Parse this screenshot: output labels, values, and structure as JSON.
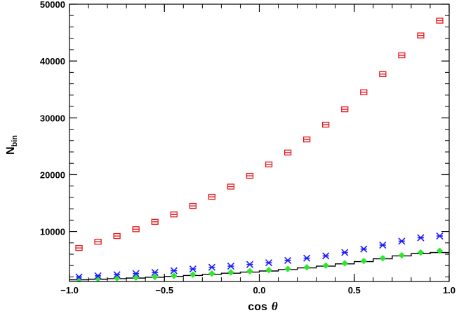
{
  "chart_data": {
    "type": "scatter",
    "xlabel_prefix": "cos",
    "xlabel_symbol": "θ",
    "ylabel_main": "N",
    "ylabel_sub": "bin",
    "xlim": [
      -1.0,
      1.0
    ],
    "ylim": [
      1200,
      50000
    ],
    "x_ticks": [
      -1.0,
      -0.5,
      0.0,
      0.5,
      1.0
    ],
    "x_tick_labels": [
      "−1.0",
      "−0.5",
      "0.0",
      "0.5",
      "1.0"
    ],
    "y_ticks": [
      10000,
      20000,
      30000,
      40000,
      50000
    ],
    "y_tick_labels": [
      "10000",
      "20000",
      "30000",
      "40000",
      "50000"
    ],
    "x": [
      -0.95,
      -0.85,
      -0.75,
      -0.65,
      -0.55,
      -0.45,
      -0.35,
      -0.25,
      -0.15,
      -0.05,
      0.05,
      0.15,
      0.25,
      0.35,
      0.45,
      0.55,
      0.65,
      0.75,
      0.85,
      0.95
    ],
    "series": [
      {
        "marker": "square-errorbar",
        "color": "#e8141a",
        "values": [
          7100,
          8200,
          9200,
          10400,
          11700,
          13000,
          14500,
          16100,
          17900,
          19800,
          21800,
          23900,
          26200,
          28800,
          31500,
          34500,
          37700,
          41000,
          44500,
          47100
        ]
      },
      {
        "marker": "asterisk",
        "color": "#1a1aff",
        "values": [
          2000,
          2200,
          2400,
          2600,
          2800,
          3100,
          3400,
          3700,
          3900,
          4200,
          4500,
          4900,
          5300,
          5700,
          6300,
          6900,
          7600,
          8300,
          8900,
          9200
        ]
      },
      {
        "marker": "diamond",
        "color": "#2ee62e",
        "values": [
          1600,
          1700,
          1800,
          1900,
          2000,
          2200,
          2400,
          2600,
          2800,
          3000,
          3200,
          3400,
          3700,
          4000,
          4400,
          4800,
          5300,
          5800,
          6300,
          6600
        ]
      },
      {
        "marker": "step-histogram",
        "color": "#000000",
        "values": [
          1500,
          1600,
          1700,
          1800,
          1950,
          2100,
          2250,
          2450,
          2650,
          2850,
          3050,
          3300,
          3600,
          3900,
          4300,
          4700,
          5200,
          5700,
          6100,
          6300
        ]
      }
    ]
  }
}
